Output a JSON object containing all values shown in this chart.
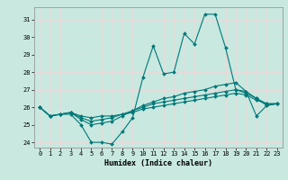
{
  "xlabel": "Humidex (Indice chaleur)",
  "ylabel": "",
  "background_color": "#c8e8e0",
  "grid_color": "#f0d8d8",
  "line_color": "#007878",
  "xlim": [
    -0.5,
    23.5
  ],
  "ylim": [
    23.7,
    31.7
  ],
  "xticks": [
    0,
    1,
    2,
    3,
    4,
    5,
    6,
    7,
    8,
    9,
    10,
    11,
    12,
    13,
    14,
    15,
    16,
    17,
    18,
    19,
    20,
    21,
    22,
    23
  ],
  "yticks": [
    24,
    25,
    26,
    27,
    28,
    29,
    30,
    31
  ],
  "line1_y": [
    26.0,
    25.5,
    25.6,
    25.6,
    25.0,
    24.0,
    24.0,
    23.9,
    24.6,
    25.4,
    27.7,
    29.5,
    27.9,
    28.0,
    30.2,
    29.6,
    31.3,
    31.3,
    29.4,
    27.0,
    26.9,
    25.5,
    26.1,
    26.2
  ],
  "line2_y": [
    26.0,
    25.5,
    25.6,
    25.7,
    25.3,
    25.0,
    25.1,
    25.2,
    25.5,
    25.8,
    26.1,
    26.3,
    26.5,
    26.6,
    26.8,
    26.9,
    27.0,
    27.2,
    27.3,
    27.4,
    26.9,
    26.5,
    26.1,
    26.2
  ],
  "line3_y": [
    26.0,
    25.5,
    25.6,
    25.7,
    25.4,
    25.2,
    25.3,
    25.4,
    25.6,
    25.8,
    26.0,
    26.2,
    26.3,
    26.4,
    26.5,
    26.6,
    26.7,
    26.8,
    26.9,
    27.0,
    26.8,
    26.5,
    26.2,
    26.2
  ],
  "line4_y": [
    26.0,
    25.5,
    25.6,
    25.7,
    25.5,
    25.4,
    25.5,
    25.5,
    25.6,
    25.7,
    25.9,
    26.0,
    26.1,
    26.2,
    26.3,
    26.4,
    26.5,
    26.6,
    26.7,
    26.8,
    26.7,
    26.4,
    26.2,
    26.2
  ],
  "marker_size": 2.0,
  "line_width": 0.8,
  "tick_fontsize": 5.0,
  "xlabel_fontsize": 6.0
}
